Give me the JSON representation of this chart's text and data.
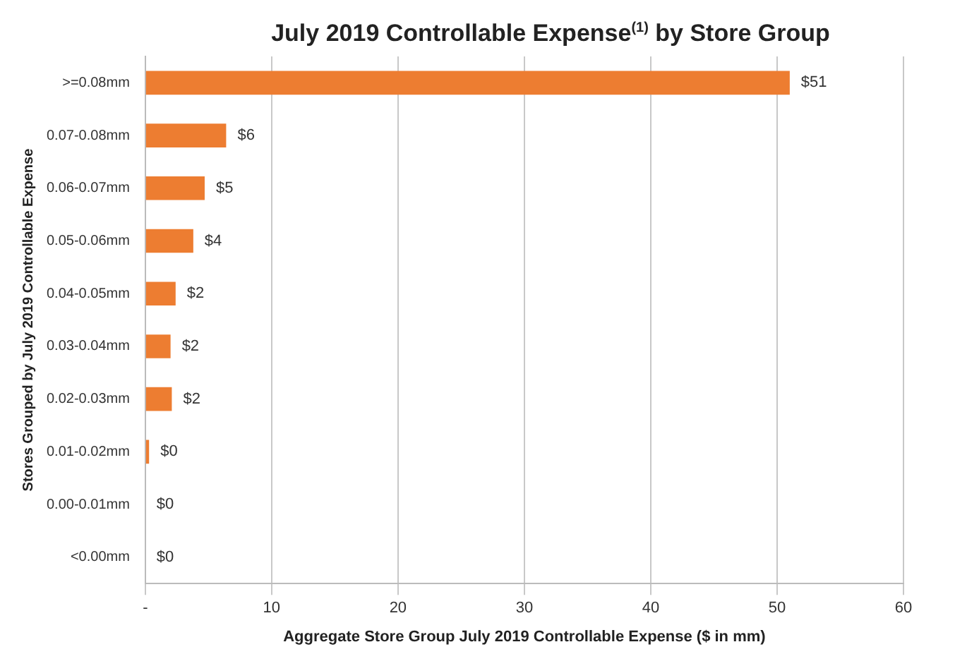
{
  "chart_data": {
    "type": "bar",
    "orientation": "horizontal",
    "title": "July 2019 Controllable Expense$^{(1)}$ by Store Group",
    "xlabel": "Aggregate Store Group July 2019 Controllable Expense ($ in mm)",
    "ylabel": "Stores Grouped by July 2019 Controllable Expense",
    "categories": [
      ">=0.08mm",
      "0.07-0.08mm",
      "0.06-0.07mm",
      "0.05-0.06mm",
      "0.04-0.05mm",
      "0.03-0.04mm",
      "0.02-0.03mm",
      "0.01-0.02mm",
      "0.00-0.01mm",
      "<0.00mm"
    ],
    "values": [
      51,
      6.4,
      4.7,
      3.8,
      2.4,
      2.0,
      2.1,
      0.3,
      0,
      0
    ],
    "value_labels": [
      "$51",
      "$6",
      "$5",
      "$4",
      "$2",
      "$2",
      "$2",
      "$0",
      "$0",
      "$0"
    ],
    "color": "#ed7d31",
    "xlim": [
      0,
      60
    ],
    "xticks": [
      {
        "value": 0,
        "label": "-"
      },
      10,
      20,
      30,
      40,
      50,
      60
    ],
    "grid": "x",
    "legend": false
  }
}
